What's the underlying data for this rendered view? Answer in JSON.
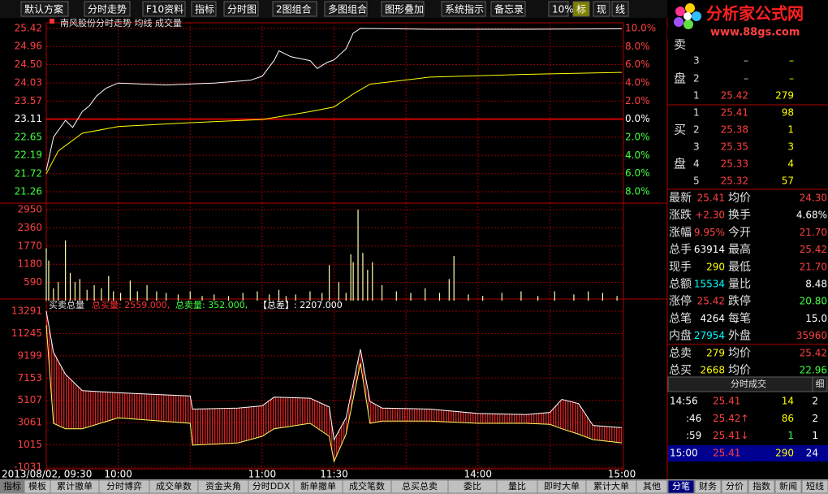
{
  "toolbar": [
    "默认方案",
    "分时走势",
    "F10资料",
    "指标",
    "分时图",
    "2图组合",
    "多图组合",
    "图形叠加",
    "系统指示",
    "备忘录",
    "10%",
    "标",
    "现",
    "线"
  ],
  "logo": {
    "title": "分析家公式网",
    "url": "www.88gs.com"
  },
  "chart_data": [
    {
      "type": "line",
      "title": "南风股份分时走势 均线 成交量",
      "xlim": [
        0,
        240
      ],
      "xgrid": [
        30,
        60,
        90,
        120,
        150,
        180,
        210
      ],
      "ylim": [
        21.26,
        25.42
      ],
      "yticks": [
        25.42,
        24.96,
        {
          "value": 24.5,
          "label": "24.50"
        },
        24.03,
        23.57,
        23.11,
        22.65,
        22.19,
        21.72,
        21.26
      ],
      "y2lim": [
        -8,
        10
      ],
      "y2ticks": [
        {
          "value": 10,
          "label": "10.0%"
        },
        {
          "value": 8,
          "label": "8.0%"
        },
        {
          "value": 6,
          "label": "6.0%"
        },
        {
          "value": 4,
          "label": "4.0%"
        },
        {
          "value": 2,
          "label": "2.0%"
        },
        {
          "value": 0,
          "label": "0.0%"
        },
        {
          "value": -2,
          "label": "2.0%"
        },
        {
          "value": -4,
          "label": "4.0%"
        },
        {
          "value": -6,
          "label": "6.0%"
        },
        {
          "value": -8,
          "label": "8.0%"
        }
      ],
      "series": [
        {
          "color": "#ffffff",
          "x": [
            0,
            3,
            8,
            11,
            15,
            18,
            21,
            25,
            30,
            50,
            70,
            85,
            90,
            95,
            97,
            102,
            110,
            113,
            117,
            120,
            125,
            128,
            131,
            160,
            200,
            240
          ],
          "values": [
            21.8,
            22.65,
            23.08,
            22.9,
            23.3,
            23.45,
            23.7,
            23.9,
            24.03,
            23.98,
            24.03,
            24.1,
            24.2,
            24.6,
            24.85,
            24.7,
            24.6,
            24.4,
            24.55,
            24.62,
            24.9,
            25.3,
            25.42,
            25.4,
            25.4,
            25.41
          ]
        },
        {
          "color": "#ffff00",
          "x": [
            0,
            5,
            15,
            30,
            60,
            90,
            110,
            120,
            128,
            135,
            160,
            200,
            240
          ],
          "values": [
            21.72,
            22.3,
            22.75,
            22.92,
            23.02,
            23.1,
            23.3,
            23.42,
            23.75,
            24.0,
            24.18,
            24.25,
            24.3
          ]
        }
      ]
    },
    {
      "type": "bar",
      "xlim": [
        0,
        240
      ],
      "xgrid": [
        30,
        60,
        90,
        120,
        150,
        180,
        210
      ],
      "ylim": [
        0,
        2950
      ],
      "yticks": [
        2950,
        2360,
        1770,
        1180,
        590
      ],
      "color": "#ffffb0",
      "x": [
        0,
        1,
        3,
        5,
        8,
        10,
        12,
        14,
        17,
        20,
        23,
        26,
        28,
        31,
        35,
        38,
        42,
        46,
        50,
        55,
        60,
        65,
        70,
        76,
        82,
        88,
        93,
        97,
        100,
        104,
        110,
        115,
        118,
        122,
        125,
        127,
        128,
        130,
        132,
        134,
        136,
        140,
        146,
        152,
        158,
        164,
        168,
        170,
        176,
        182,
        190,
        198,
        205,
        212,
        220,
        226,
        232,
        238
      ],
      "values": [
        1700,
        1300,
        400,
        600,
        1950,
        900,
        600,
        700,
        350,
        500,
        400,
        800,
        300,
        250,
        650,
        300,
        500,
        300,
        250,
        200,
        300,
        150,
        200,
        150,
        250,
        300,
        200,
        350,
        150,
        200,
        300,
        250,
        1150,
        600,
        250,
        1500,
        1250,
        2950,
        1550,
        1000,
        1250,
        500,
        300,
        250,
        400,
        250,
        700,
        1450,
        200,
        150,
        250,
        300,
        150,
        300,
        200,
        300,
        250,
        150
      ]
    },
    {
      "type": "line",
      "title": "买卖总量",
      "legend": [
        "总买量: 2559.000,",
        "总卖量: 352.000,",
        "【总差】: 2207.000"
      ],
      "xlim": [
        0,
        240
      ],
      "xgrid": [
        30,
        60,
        90,
        120,
        150,
        180,
        210
      ],
      "xticks": [
        {
          "value": 0,
          "label": "2013/08/02, 09:30"
        },
        {
          "value": 30,
          "label": "10:00"
        },
        {
          "value": 90,
          "label": "11:00"
        },
        {
          "value": 120,
          "label": "11:30"
        },
        {
          "value": 180,
          "label": "14:00"
        },
        {
          "value": 240,
          "label": "15:00"
        }
      ],
      "ylim": [
        -1031,
        13291
      ],
      "yticks": [
        13291,
        11245,
        9199,
        7153,
        5107,
        3061,
        1015,
        -1031
      ],
      "fill": "#c81818",
      "x": [
        0,
        3,
        8,
        15,
        30,
        60,
        61,
        80,
        90,
        95,
        110,
        118,
        120,
        125,
        131,
        135,
        140,
        160,
        180,
        200,
        210,
        215,
        222,
        228,
        240
      ],
      "series": [
        {
          "color": "#ffffff",
          "values": [
            13291,
            9500,
            7500,
            6000,
            5800,
            5500,
            4300,
            4400,
            4600,
            5400,
            5300,
            4500,
            1500,
            3500,
            9800,
            5000,
            4400,
            4300,
            3900,
            3800,
            4000,
            5200,
            4800,
            2800,
            2600
          ]
        },
        {
          "color": "#ffff60",
          "values": [
            12000,
            3000,
            2500,
            2500,
            3500,
            3000,
            1000,
            1200,
            1800,
            2500,
            3000,
            1800,
            -500,
            2000,
            8500,
            3000,
            3200,
            3200,
            3000,
            3000,
            2900,
            2500,
            2000,
            1500,
            1200
          ]
        }
      ]
    }
  ],
  "order_book": {
    "ask_label": [
      "卖",
      "盘"
    ],
    "asks": [
      [
        "3",
        "–",
        "–"
      ],
      [
        "2",
        "–",
        "–"
      ],
      [
        "1",
        "25.42",
        "279"
      ]
    ],
    "bid_label": [
      "买",
      "盘"
    ],
    "bids": [
      [
        "1",
        "25.41",
        "98"
      ],
      [
        "2",
        "25.38",
        "1"
      ],
      [
        "3",
        "25.35",
        "3"
      ],
      [
        "4",
        "25.33",
        "4"
      ],
      [
        "5",
        "25.32",
        "57"
      ]
    ]
  },
  "stats": [
    [
      "最新",
      "25.41",
      "均价",
      "24.30"
    ],
    [
      "涨跌",
      "+2.30",
      "换手",
      "4.68%"
    ],
    [
      "涨幅",
      "9.95%",
      "今开",
      "21.70"
    ],
    [
      "总手",
      "63914",
      "最高",
      "25.42"
    ],
    [
      "现手",
      "290",
      "最低",
      "21.70"
    ],
    [
      "总额",
      "15534",
      "量比",
      "8.48"
    ],
    [
      "涨停",
      "25.42",
      "跌停",
      "20.80"
    ],
    [
      "总笔",
      "4264",
      "每笔",
      "15.0"
    ],
    [
      "内盘",
      "27954",
      "外盘",
      "35960"
    ],
    [
      "总卖",
      "279",
      "均价",
      "25.42"
    ],
    [
      "总买",
      "2668",
      "均价",
      "22.96"
    ]
  ],
  "trades": {
    "tab": "分时成交",
    "detail": "细",
    "rows": [
      [
        "14:56",
        "25.41",
        "14",
        "2"
      ],
      [
        ":46",
        "25.42↑",
        "86",
        "2"
      ],
      [
        ":59",
        "25.41↓",
        "1",
        "1"
      ],
      [
        "15:00",
        "25.41",
        "290",
        "24"
      ]
    ]
  },
  "bottom_tabs": [
    "指标",
    "模板",
    "累计撤单",
    "分时博弈",
    "成交单数",
    "资金夹角",
    "分时DDX",
    "新单撤单",
    "成交笔数",
    "总买总卖",
    "委比",
    "量比",
    "即时大单",
    "累计大单",
    "其他"
  ],
  "side_tabs": [
    "分笔",
    "财务",
    "分价",
    "指数",
    "新闻",
    "短线"
  ]
}
